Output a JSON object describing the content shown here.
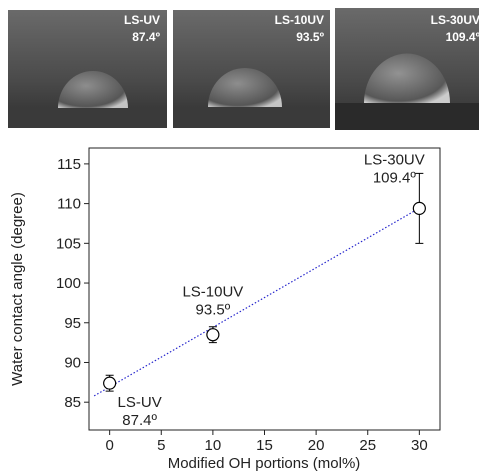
{
  "chart_data": {
    "type": "scatter",
    "x_label": "Modified OH portions (mol%)",
    "y_label": "Water contact angle (degree)",
    "x": [
      0,
      10,
      30
    ],
    "series": [
      {
        "values": [
          87.4,
          93.5,
          109.4
        ],
        "errors": [
          1.0,
          1.0,
          4.4
        ],
        "color": "#000000",
        "point_labels": [
          "LS-UV",
          "LS-10UV",
          "LS-30UV"
        ],
        "value_labels": [
          "87.4º",
          "93.5º",
          "109.4º"
        ]
      }
    ],
    "fit": {
      "x": [
        -1.5,
        30.5
      ],
      "values": [
        85.8,
        109.8
      ],
      "color": "#2222cc"
    },
    "xlim": [
      -2,
      32
    ],
    "ylim": [
      81.5,
      117
    ],
    "xticks": [
      0,
      5,
      10,
      15,
      20,
      25,
      30
    ],
    "yticks": [
      85,
      90,
      95,
      100,
      105,
      110,
      115
    ]
  }
}
